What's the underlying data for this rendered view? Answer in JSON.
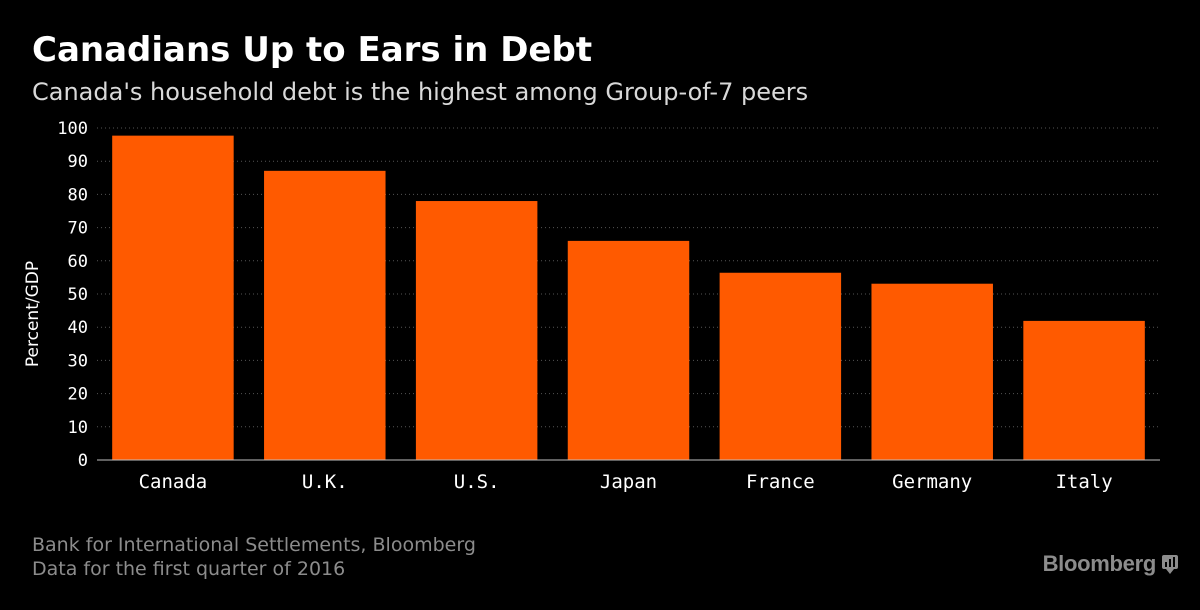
{
  "title": "Canadians Up to Ears in Debt",
  "subtitle": "Canada's household debt is the highest among Group-of-7 peers",
  "footer": {
    "source": "Bank for International Settlements, Bloomberg",
    "note": "Data for the first quarter of 2016"
  },
  "brand": {
    "name": "Bloomberg",
    "icon": "bloomberg-terminal-icon"
  },
  "colors": {
    "bar": "#ff5a00",
    "background": "#000000",
    "text": "#ffffff",
    "muted": "#8c8c8c",
    "grid": "#555555"
  },
  "chart_data": {
    "type": "bar",
    "categories": [
      "Canada",
      "U.K.",
      "U.S.",
      "Japan",
      "France",
      "Germany",
      "Italy"
    ],
    "values": [
      97.7,
      87.1,
      78.0,
      66.0,
      56.4,
      53.1,
      41.9
    ],
    "xlabel": "",
    "ylabel": "Percent/GDP",
    "ylim": [
      0,
      100
    ],
    "yticks": [
      0,
      10,
      20,
      30,
      40,
      50,
      60,
      70,
      80,
      90,
      100
    ],
    "grid": true,
    "legend": "none"
  }
}
